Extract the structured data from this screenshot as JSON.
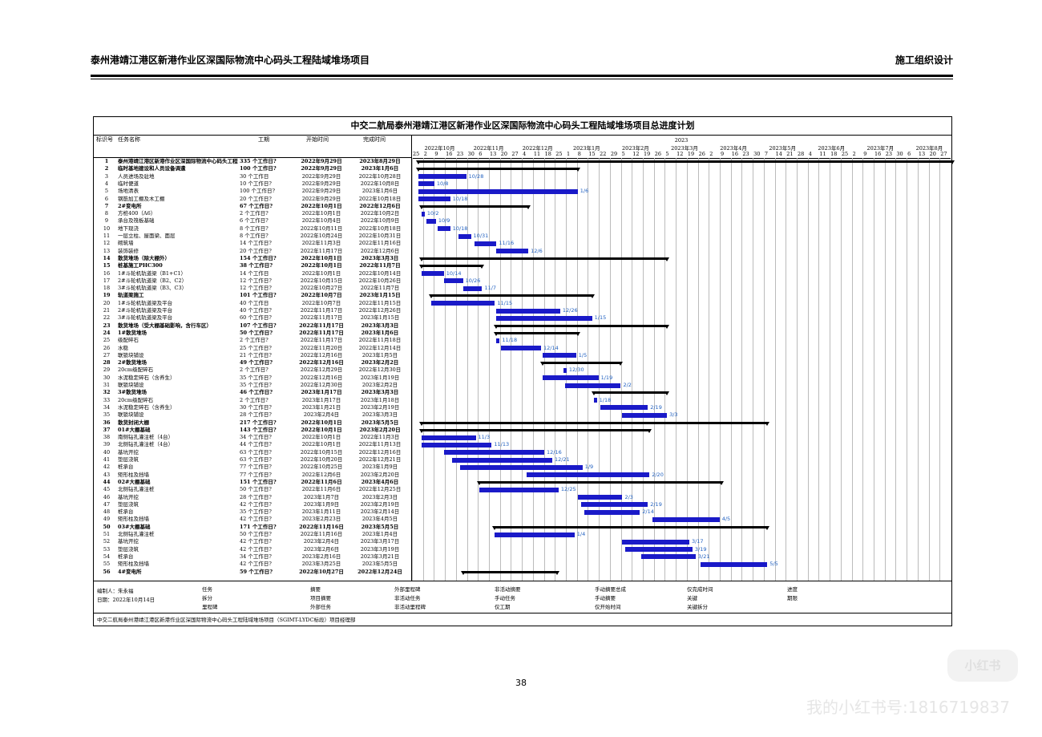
{
  "header": {
    "left_title": "泰州港靖江港区新港作业区深国际物流中心码头工程陆域堆场项目",
    "right_title": "施工组织设计"
  },
  "gantt": {
    "title": "中交二航局泰州港靖江港区新港作业区深国际物流中心码头工程陆域堆场项目总进度计划",
    "columns": [
      "标识号",
      "任务名称",
      "工期",
      "开始时间",
      "完成时间"
    ],
    "year_label": "2023",
    "months": [
      "2022年10月",
      "2022年11月",
      "2022年12月",
      "2023年1月",
      "2023年2月",
      "2023年3月",
      "2023年4月",
      "2023年5月",
      "2023年6月",
      "2023年7月",
      "2023年8月"
    ],
    "days": [
      "25",
      "2",
      "9",
      "16",
      "23",
      "30",
      "6",
      "13",
      "20",
      "27",
      "4",
      "11",
      "18",
      "25",
      "1",
      "8",
      "15",
      "22",
      "29",
      "5",
      "12",
      "19",
      "26",
      "5",
      "12",
      "19",
      "26",
      "2",
      "9",
      "16",
      "23",
      "30",
      "7",
      "14",
      "21",
      "28",
      "4",
      "11",
      "18",
      "25",
      "2",
      "9",
      "16",
      "23",
      "30",
      "6",
      "13",
      "20",
      "27"
    ],
    "tasks": [
      {
        "id": "1",
        "name": "泰州港靖江港区新港作业区深国际物流中心码头工程陆域堆场项目",
        "dur": "335 个工作日?",
        "start": "2022年9月29日",
        "end": "2023年8月29日",
        "summary": true
      },
      {
        "id": "2",
        "name": "临时基地建设和人员设备调遣",
        "dur": "100 个工作日?",
        "start": "2022年9月29日",
        "end": "2023年1月6日",
        "summary": true
      },
      {
        "id": "3",
        "name": "人员进场及驻地",
        "dur": "30 个工作日",
        "start": "2022年9月29日",
        "end": "2022年10月28日",
        "summary": false
      },
      {
        "id": "4",
        "name": "临时便道",
        "dur": "10 个工作日?",
        "start": "2022年9月29日",
        "end": "2022年10月8日",
        "summary": false
      },
      {
        "id": "5",
        "name": "场地清表",
        "dur": "100 个工作日?",
        "start": "2022年9月29日",
        "end": "2023年1月6日",
        "summary": false
      },
      {
        "id": "6",
        "name": "钢筋加工棚及木工棚",
        "dur": "20 个工作日?",
        "start": "2022年9月29日",
        "end": "2022年10月18日",
        "summary": false
      },
      {
        "id": "7",
        "name": "2#变电所",
        "dur": "67 个工作日?",
        "start": "2022年10月1日",
        "end": "2022年12月6日",
        "summary": true
      },
      {
        "id": "8",
        "name": "方桩400（A6）",
        "dur": "2 个工作日?",
        "start": "2022年10月1日",
        "end": "2022年10月2日",
        "summary": false
      },
      {
        "id": "9",
        "name": "承台及筏板基础",
        "dur": "6 个工作日?",
        "start": "2022年10月4日",
        "end": "2022年10月9日",
        "summary": false
      },
      {
        "id": "10",
        "name": "地下现浇",
        "dur": "8 个工作日?",
        "start": "2022年10月11日",
        "end": "2022年10月18日",
        "summary": false
      },
      {
        "id": "11",
        "name": "一层立柱、屋面梁、面层",
        "dur": "8 个工作日?",
        "start": "2022年10月24日",
        "end": "2022年10月31日",
        "summary": false
      },
      {
        "id": "12",
        "name": "砌筑墙",
        "dur": "14 个工作日?",
        "start": "2022年11月3日",
        "end": "2022年11月16日",
        "summary": false
      },
      {
        "id": "13",
        "name": "装饰装修",
        "dur": "20 个工作日?",
        "start": "2022年11月17日",
        "end": "2022年12月6日",
        "summary": false
      },
      {
        "id": "14",
        "name": "散货堆场（除大棚外）",
        "dur": "154 个工作日?",
        "start": "2022年10月1日",
        "end": "2023年3月3日",
        "summary": true
      },
      {
        "id": "15",
        "name": "桩基施工PHC300",
        "dur": "38 个工作日?",
        "start": "2022年10月1日",
        "end": "2022年11月7日",
        "summary": true
      },
      {
        "id": "16",
        "name": "1#斗轮机轨道梁（B1+C1）",
        "dur": "14 个工作日",
        "start": "2022年10月1日",
        "end": "2022年10月14日",
        "summary": false
      },
      {
        "id": "17",
        "name": "2#斗轮机轨道梁（B2、C2）",
        "dur": "12 个工作日?",
        "start": "2022年10月15日",
        "end": "2022年10月26日",
        "summary": false
      },
      {
        "id": "18",
        "name": "3#斗轮机轨道梁（B3、C3）",
        "dur": "12 个工作日?",
        "start": "2022年10月27日",
        "end": "2022年11月7日",
        "summary": false
      },
      {
        "id": "19",
        "name": "轨道梁施工",
        "dur": "101 个工作日?",
        "start": "2022年10月7日",
        "end": "2023年1月15日",
        "summary": true
      },
      {
        "id": "20",
        "name": "1#斗轮机轨道梁及平台",
        "dur": "40 个工作日",
        "start": "2022年10月7日",
        "end": "2022年11月15日",
        "summary": false
      },
      {
        "id": "21",
        "name": "2#斗轮机轨道梁及平台",
        "dur": "40 个工作日?",
        "start": "2022年11月17日",
        "end": "2022年12月26日",
        "summary": false
      },
      {
        "id": "22",
        "name": "3#斗轮机轨道梁及平台",
        "dur": "60 个工作日?",
        "start": "2022年11月17日",
        "end": "2023年1月15日",
        "summary": false
      },
      {
        "id": "23",
        "name": "散货堆场（受大棚基础影响，含行车区）",
        "dur": "107 个工作日?",
        "start": "2022年11月17日",
        "end": "2023年3月3日",
        "summary": true
      },
      {
        "id": "24",
        "name": "1#散货堆场",
        "dur": "50 个工作日?",
        "start": "2022年11月17日",
        "end": "2023年1月6日",
        "summary": true
      },
      {
        "id": "25",
        "name": "级配碎石",
        "dur": "2 个工作日?",
        "start": "2022年11月17日",
        "end": "2022年11月18日",
        "summary": false
      },
      {
        "id": "26",
        "name": "水稳",
        "dur": "25 个工作日?",
        "start": "2022年11月20日",
        "end": "2022年12月14日",
        "summary": false
      },
      {
        "id": "27",
        "name": "联锁块铺设",
        "dur": "21 个工作日?",
        "start": "2022年12月16日",
        "end": "2023年1月5日",
        "summary": false
      },
      {
        "id": "28",
        "name": "2#散货堆场",
        "dur": "49 个工作日?",
        "start": "2022年12月16日",
        "end": "2023年2月2日",
        "summary": true
      },
      {
        "id": "29",
        "name": "20cm级配碎石",
        "dur": "2 个工作日?",
        "start": "2022年12月29日",
        "end": "2022年12月30日",
        "summary": false
      },
      {
        "id": "30",
        "name": "水泥稳定碎石（含养生）",
        "dur": "35 个工作日?",
        "start": "2022年12月16日",
        "end": "2023年1月19日",
        "summary": false
      },
      {
        "id": "31",
        "name": "联锁块铺设",
        "dur": "35 个工作日?",
        "start": "2022年12月30日",
        "end": "2023年2月2日",
        "summary": false
      },
      {
        "id": "32",
        "name": "3#散货堆场",
        "dur": "46 个工作日?",
        "start": "2023年1月17日",
        "end": "2023年3月3日",
        "summary": true
      },
      {
        "id": "33",
        "name": "20cm级配碎石",
        "dur": "2 个工作日?",
        "start": "2023年1月17日",
        "end": "2023年1月18日",
        "summary": false
      },
      {
        "id": "34",
        "name": "水泥稳定碎石（含养生）",
        "dur": "30 个工作日?",
        "start": "2023年1月21日",
        "end": "2023年2月19日",
        "summary": false
      },
      {
        "id": "35",
        "name": "联锁块铺设",
        "dur": "28 个工作日?",
        "start": "2023年2月4日",
        "end": "2023年3月3日",
        "summary": false
      },
      {
        "id": "36",
        "name": "散货封闭大棚",
        "dur": "217 个工作日?",
        "start": "2022年10月1日",
        "end": "2023年5月5日",
        "summary": true
      },
      {
        "id": "37",
        "name": "01#大棚基础",
        "dur": "143 个工作日?",
        "start": "2022年10月1日",
        "end": "2023年2月20日",
        "summary": true
      },
      {
        "id": "38",
        "name": "南侧钻孔灌注桩（4台）",
        "dur": "34 个工作日?",
        "start": "2022年10月1日",
        "end": "2022年11月3日",
        "summary": false
      },
      {
        "id": "39",
        "name": "北侧钻孔灌注桩（4台）",
        "dur": "44 个工作日?",
        "start": "2022年10月1日",
        "end": "2022年11月13日",
        "summary": false
      },
      {
        "id": "40",
        "name": "基坑开挖",
        "dur": "63 个工作日?",
        "start": "2022年10月15日",
        "end": "2022年12月16日",
        "summary": false
      },
      {
        "id": "41",
        "name": "垫层浇筑",
        "dur": "63 个工作日?",
        "start": "2022年10月20日",
        "end": "2022年12月21日",
        "summary": false
      },
      {
        "id": "42",
        "name": "桩承台",
        "dur": "77 个工作日?",
        "start": "2022年10月25日",
        "end": "2023年1月9日",
        "summary": false
      },
      {
        "id": "43",
        "name": "矩形柱及挡墙",
        "dur": "77 个工作日?",
        "start": "2022年12月6日",
        "end": "2023年2月20日",
        "summary": false
      },
      {
        "id": "44",
        "name": "02#大棚基础",
        "dur": "151 个工作日?",
        "start": "2022年11月6日",
        "end": "2023年4月6日",
        "summary": true
      },
      {
        "id": "45",
        "name": "北侧钻孔灌注桩",
        "dur": "50 个工作日?",
        "start": "2022年11月6日",
        "end": "2022年12月25日",
        "summary": false
      },
      {
        "id": "46",
        "name": "基坑开挖",
        "dur": "28 个工作日?",
        "start": "2023年1月7日",
        "end": "2023年2月3日",
        "summary": false
      },
      {
        "id": "47",
        "name": "垫层浇筑",
        "dur": "42 个工作日?",
        "start": "2023年1月9日",
        "end": "2023年2月19日",
        "summary": false
      },
      {
        "id": "48",
        "name": "桩承台",
        "dur": "35 个工作日?",
        "start": "2023年1月11日",
        "end": "2023年2月14日",
        "summary": false
      },
      {
        "id": "49",
        "name": "矩形柱及挡墙",
        "dur": "42 个工作日?",
        "start": "2023年2月23日",
        "end": "2023年4月5日",
        "summary": false
      },
      {
        "id": "50",
        "name": "03#大棚基础",
        "dur": "171 个工作日?",
        "start": "2022年11月16日",
        "end": "2023年5月5日",
        "summary": true
      },
      {
        "id": "51",
        "name": "北侧钻孔灌注桩",
        "dur": "50 个工作日?",
        "start": "2022年11月16日",
        "end": "2023年1月4日",
        "summary": false
      },
      {
        "id": "52",
        "name": "基坑开挖",
        "dur": "42 个工作日?",
        "start": "2023年2月4日",
        "end": "2023年3月17日",
        "summary": false
      },
      {
        "id": "53",
        "name": "垫层浇筑",
        "dur": "42 个工作日?",
        "start": "2023年2月6日",
        "end": "2023年3月19日",
        "summary": false
      },
      {
        "id": "54",
        "name": "桩承台",
        "dur": "34 个工作日?",
        "start": "2023年2月16日",
        "end": "2023年3月21日",
        "summary": false
      },
      {
        "id": "55",
        "name": "矩形柱及挡墙",
        "dur": "42 个工作日?",
        "start": "2023年3月25日",
        "end": "2023年5月5日",
        "summary": false
      },
      {
        "id": "56",
        "name": "4#变电所",
        "dur": "59 个工作日?",
        "start": "2022年10月27日",
        "end": "2022年12月24日",
        "summary": true
      }
    ],
    "bar_labels": [
      {
        "row": 3,
        "text": "10/28"
      },
      {
        "row": 4,
        "text": "10/8"
      },
      {
        "row": 5,
        "text": "1/6"
      },
      {
        "row": 6,
        "text": "10/18"
      },
      {
        "row": 8,
        "text": "10/2"
      },
      {
        "row": 9,
        "text": "10/9"
      },
      {
        "row": 10,
        "text": "10/18"
      },
      {
        "row": 11,
        "text": "10/31"
      },
      {
        "row": 12,
        "text": "11/16"
      },
      {
        "row": 13,
        "text": "12/6"
      },
      {
        "row": 16,
        "text": "10/14"
      },
      {
        "row": 17,
        "text": "10/26"
      },
      {
        "row": 18,
        "text": "11/7"
      },
      {
        "row": 20,
        "text": "11/15"
      },
      {
        "row": 21,
        "text": "12/26"
      },
      {
        "row": 22,
        "text": "1/15"
      },
      {
        "row": 25,
        "text": "11/18"
      },
      {
        "row": 26,
        "text": "12/14"
      },
      {
        "row": 27,
        "text": "1/5"
      },
      {
        "row": 29,
        "text": "12/30"
      },
      {
        "row": 30,
        "text": "1/19"
      },
      {
        "row": 31,
        "text": "2/2"
      },
      {
        "row": 33,
        "text": "1/18"
      },
      {
        "row": 34,
        "text": "2/19"
      },
      {
        "row": 35,
        "text": "3/3"
      },
      {
        "row": 38,
        "text": "11/3"
      },
      {
        "row": 39,
        "text": "11/13"
      },
      {
        "row": 40,
        "text": "12/16"
      },
      {
        "row": 41,
        "text": "12/21"
      },
      {
        "row": 42,
        "text": "1/9"
      },
      {
        "row": 43,
        "text": "2/20"
      },
      {
        "row": 45,
        "text": "12/25"
      },
      {
        "row": 46,
        "text": "2/3"
      },
      {
        "row": 47,
        "text": "2/19"
      },
      {
        "row": 48,
        "text": "2/14"
      },
      {
        "row": 49,
        "text": "4/5"
      },
      {
        "row": 51,
        "text": "1/4"
      },
      {
        "row": 52,
        "text": "3/17"
      },
      {
        "row": 53,
        "text": "3/19"
      },
      {
        "row": 54,
        "text": "3/21"
      },
      {
        "row": 55,
        "text": "5/5"
      }
    ]
  },
  "legend": {
    "editor": "编制人：朱永福",
    "date": "日期：2022年10月14日",
    "items": [
      "任务",
      "拆分",
      "里程碑",
      "摘要",
      "项目摘要",
      "外部任务",
      "外部里程碑",
      "非活动任务",
      "非活动里程碑",
      "非活动摘要",
      "手动任务",
      "仅工期",
      "手动摘要总成",
      "手动摘要",
      "仅开始时间",
      "仅完成时间",
      "关键",
      "关键拆分",
      "进度",
      "期限"
    ],
    "footer": "中交二航局泰州港靖江港区新港作业区深国际物流中心码头工程陆域堆场项目（SGIMT-LYDC标段）项目经理部"
  },
  "page_number": "38",
  "watermark": {
    "logo_text": "小红书",
    "account": "我的小红书号:1816719837"
  },
  "colors": {
    "task_bar": "#1a1ac8",
    "label": "#2060c0",
    "summary": "#000000"
  }
}
